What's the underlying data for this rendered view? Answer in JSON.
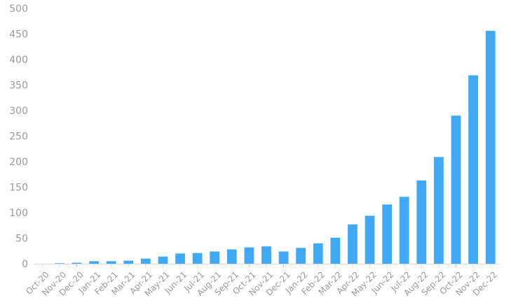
{
  "chart_data": {
    "type": "bar",
    "title": "",
    "xlabel": "",
    "ylabel": "",
    "ylim": [
      0,
      500
    ],
    "yticks": [
      0,
      50,
      100,
      150,
      200,
      250,
      300,
      350,
      400,
      450,
      500
    ],
    "grid": false,
    "legend": "none",
    "bar_color": "#3fa9f5",
    "axis_color": "#d9d9d9",
    "label_color": "#9a9a9a",
    "categories": [
      "Oct-20",
      "Nov-20",
      "Dec-20",
      "Jan-21",
      "Feb-21",
      "Mar-21",
      "Apr-21",
      "May-21",
      "Jun-21",
      "Jul-21",
      "Aug-21",
      "Sep-21",
      "Oct-21",
      "Nov-21",
      "Dec-21",
      "Jan-22",
      "Feb-22",
      "Mar-22",
      "Apr-22",
      "May-22",
      "Jun-22",
      "Jul-22",
      "Aug-22",
      "Sep-22",
      "Oct-22",
      "Nov-22",
      "Dec-22"
    ],
    "values": [
      0,
      1,
      2,
      5,
      5,
      6,
      10,
      14,
      20,
      21,
      24,
      28,
      32,
      34,
      24,
      31,
      40,
      51,
      77,
      94,
      116,
      131,
      163,
      209,
      290,
      369,
      456
    ]
  }
}
